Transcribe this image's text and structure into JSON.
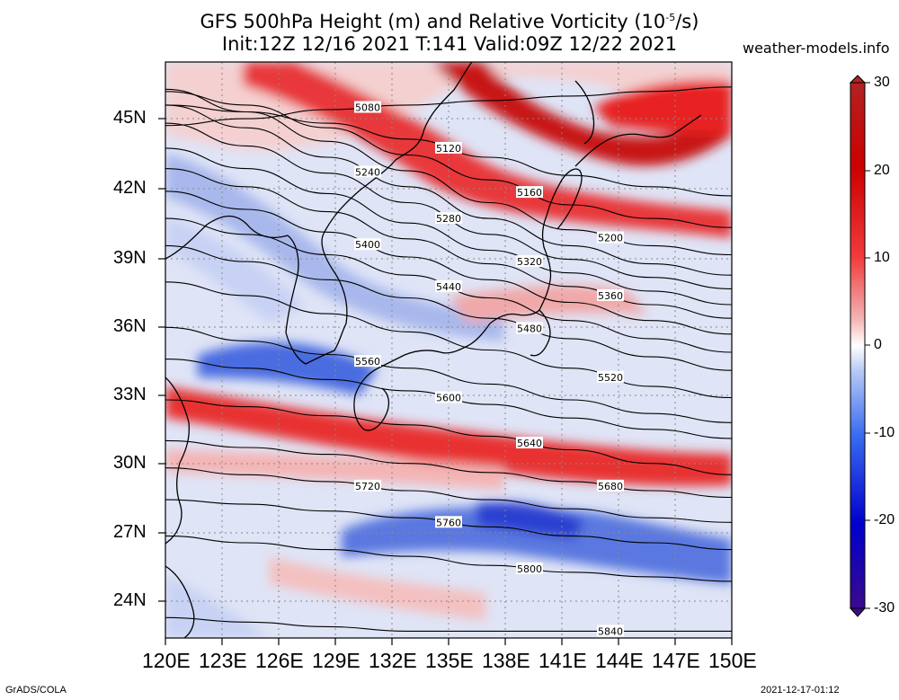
{
  "title": {
    "line1_prefix": "GFS 500hPa Height (m) and Relative Vorticity (10",
    "line1_exp": "-5",
    "line1_suffix": "/s)",
    "line2": "Init:12Z 12/16 2021 T:141 Valid:09Z 12/22 2021"
  },
  "site": "weather-models.info",
  "lat_labels": [
    "45N",
    "42N",
    "39N",
    "36N",
    "33N",
    "30N",
    "27N",
    "24N"
  ],
  "lon_labels": [
    "120E",
    "123E",
    "126E",
    "129E",
    "132E",
    "135E",
    "138E",
    "141E",
    "144E",
    "147E",
    "150E"
  ],
  "colorbar": {
    "labels": [
      "30",
      "20",
      "10",
      "0",
      "-10",
      "-20",
      "-30"
    ],
    "colors": [
      "#3a0a8c",
      "#0000cc",
      "#3a6cf0",
      "#b4c8f4",
      "#ffffff",
      "#f4b4b4",
      "#f03a3a",
      "#cc0000",
      "#b22222"
    ]
  },
  "contours": [
    {
      "label": "5080",
      "lats": [
        45.3,
        45.6,
        46.0,
        46.2,
        46.4,
        46.6,
        46.8,
        47.0
      ]
    },
    {
      "label": "5120",
      "lats": [
        46.2,
        45.9,
        45.4,
        44.7,
        43.9,
        43.1,
        42.6,
        42.2
      ]
    },
    {
      "label": "5160",
      "lats": [
        46.8,
        46.2,
        45.2,
        44.0,
        42.9,
        41.8,
        41.2,
        40.8
      ]
    },
    {
      "label": "5200",
      "lats": [
        46.9,
        45.9,
        44.6,
        43.3,
        41.9,
        40.7,
        40.0,
        39.6
      ]
    },
    {
      "label": "5240",
      "lats": [
        46.2,
        45.2,
        43.9,
        42.6,
        41.2,
        40.0,
        39.2,
        38.7
      ]
    },
    {
      "label": "5280",
      "lats": [
        45.4,
        44.4,
        43.2,
        41.9,
        40.5,
        39.4,
        38.6,
        38.1
      ]
    },
    {
      "label": "5320",
      "lats": [
        44.3,
        43.4,
        42.3,
        41.0,
        39.8,
        38.8,
        38.0,
        37.4
      ]
    },
    {
      "label": "5360",
      "lats": [
        43.4,
        42.6,
        41.5,
        40.3,
        39.2,
        38.2,
        37.4,
        36.8
      ]
    },
    {
      "label": "5400",
      "lats": [
        42.4,
        41.6,
        40.6,
        39.5,
        38.5,
        37.5,
        36.7,
        36.1
      ]
    },
    {
      "label": "5440",
      "lats": [
        41.2,
        40.5,
        39.6,
        38.7,
        37.7,
        36.7,
        35.9,
        35.3
      ]
    },
    {
      "label": "5480",
      "lats": [
        40.0,
        39.3,
        38.5,
        37.7,
        36.8,
        35.9,
        35.1,
        34.5
      ]
    },
    {
      "label": "5520",
      "lats": [
        38.4,
        37.8,
        37.0,
        36.2,
        35.4,
        34.6,
        33.8,
        33.3
      ]
    },
    {
      "label": "5560",
      "lats": [
        36.4,
        35.8,
        35.2,
        34.6,
        33.9,
        33.2,
        32.6,
        32.2
      ]
    },
    {
      "label": "5600",
      "lats": [
        35.0,
        34.6,
        34.1,
        33.6,
        33.0,
        32.4,
        31.9,
        31.5
      ]
    },
    {
      "label": "5640",
      "lats": [
        33.2,
        32.9,
        32.5,
        32.1,
        31.6,
        31.0,
        30.4,
        29.9
      ]
    },
    {
      "label": "5680",
      "lats": [
        31.4,
        31.1,
        30.8,
        30.4,
        30.0,
        29.6,
        29.2,
        28.9
      ]
    },
    {
      "label": "5720",
      "lats": [
        30.2,
        29.9,
        29.6,
        29.2,
        28.8,
        28.4,
        28.0,
        27.8
      ]
    },
    {
      "label": "5760",
      "lats": [
        28.8,
        28.6,
        28.3,
        28.0,
        27.6,
        27.2,
        26.9,
        26.6
      ]
    },
    {
      "label": "5800",
      "lats": [
        27.2,
        26.9,
        26.6,
        26.3,
        25.9,
        25.6,
        25.4,
        25.2
      ]
    },
    {
      "label": "5840",
      "lats": [
        23.6,
        23.4,
        23.2,
        23.0,
        23.0,
        23.0,
        23.0,
        23.0
      ]
    }
  ],
  "footer": {
    "left": "GrADS/COLA",
    "right": "2021-12-17-01:12"
  }
}
